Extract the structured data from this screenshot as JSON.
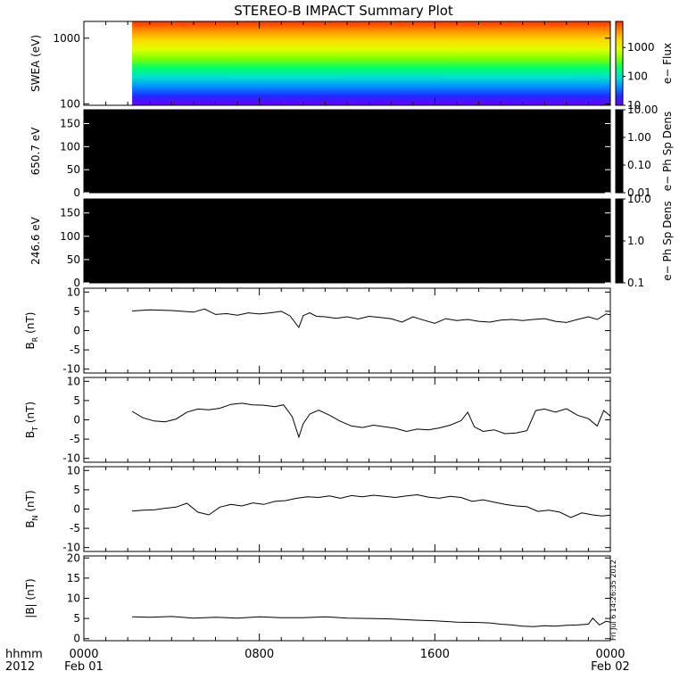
{
  "title": "STEREO-B IMPACT Summary Plot",
  "stamp": "Fri Jul  6 14:26:35 2012",
  "time_axis": {
    "label_top": "hhmm",
    "label_bottom": "2012",
    "ticks": [
      {
        "hour": 0,
        "label": "0000",
        "sublabel": "Feb 01"
      },
      {
        "hour": 8,
        "label": "0800",
        "sublabel": ""
      },
      {
        "hour": 16,
        "label": "1600",
        "sublabel": ""
      },
      {
        "hour": 24,
        "label": "0000",
        "sublabel": "Feb 02"
      }
    ]
  },
  "chart_data": [
    {
      "type": "heatmap",
      "name": "swea",
      "ylabel": "SWEA (eV)",
      "yscale": "log",
      "ylim": [
        95,
        1800
      ],
      "y_ticks": [
        {
          "v": 100,
          "label": "100"
        },
        {
          "v": 1000,
          "label": "1000"
        }
      ],
      "data_start_hour": 2.2,
      "colorbar": {
        "label": "e− Flux",
        "scale": "log",
        "range": [
          10,
          8000
        ],
        "ticks": [
          {
            "v": 10,
            "label": "10"
          },
          {
            "v": 100,
            "label": "100"
          },
          {
            "v": 1000,
            "label": "1000"
          }
        ]
      },
      "colors": [
        "#6a00ff",
        "#1f2bff",
        "#0090ff",
        "#00e0d0",
        "#00ff6a",
        "#7fff00",
        "#e0ff00",
        "#ffd800",
        "#ff9000",
        "#ff3000"
      ]
    },
    {
      "type": "heatmap",
      "name": "pad650",
      "ylabel": "650.7 eV",
      "ylim": [
        0,
        180
      ],
      "y_ticks": [
        {
          "v": 0,
          "label": "0"
        },
        {
          "v": 50,
          "label": "50"
        },
        {
          "v": 100,
          "label": "100"
        },
        {
          "v": 150,
          "label": "150"
        }
      ],
      "fill": "#000000",
      "colorbar": {
        "label": "e− Ph Sp Dens",
        "scale": "log",
        "range": [
          0.01,
          10
        ],
        "ticks": [
          {
            "v": 0.01,
            "label": "0.01"
          },
          {
            "v": 0.1,
            "label": "0.10"
          },
          {
            "v": 1,
            "label": "1.00"
          },
          {
            "v": 10,
            "label": "10.00"
          }
        ]
      }
    },
    {
      "type": "heatmap",
      "name": "pad246",
      "ylabel": "246.6 eV",
      "ylim": [
        0,
        180
      ],
      "y_ticks": [
        {
          "v": 0,
          "label": "0"
        },
        {
          "v": 50,
          "label": "50"
        },
        {
          "v": 100,
          "label": "100"
        },
        {
          "v": 150,
          "label": "150"
        }
      ],
      "fill": "#000000",
      "colorbar": {
        "label": "e− Ph Sp Dens",
        "scale": "log",
        "range": [
          0.1,
          10
        ],
        "ticks": [
          {
            "v": 0.1,
            "label": "0.1"
          },
          {
            "v": 1,
            "label": "1.0"
          },
          {
            "v": 10,
            "label": "10.0"
          }
        ]
      }
    },
    {
      "type": "line",
      "name": "br",
      "ylabel_main": "B",
      "ylabel_sub": "R",
      "ylabel_unit": " (nT)",
      "ylim": [
        -11,
        11
      ],
      "y_ticks": [
        -10,
        -5,
        0,
        5,
        10
      ],
      "x": [
        2.2,
        3,
        4,
        5,
        5.5,
        6,
        6.5,
        7,
        7.5,
        8,
        8.5,
        9,
        9.4,
        9.8,
        10,
        10.3,
        10.6,
        11,
        11.5,
        12,
        12.5,
        13,
        13.5,
        14,
        14.5,
        15,
        15.5,
        16,
        16.5,
        17,
        17.5,
        18,
        18.5,
        19,
        19.5,
        20,
        20.5,
        21,
        21.5,
        22,
        22.5,
        23,
        23.4,
        23.8,
        24
      ],
      "y": [
        5.1,
        5.4,
        5.2,
        4.8,
        5.6,
        4.2,
        4.4,
        4.0,
        4.6,
        4.3,
        4.6,
        5.0,
        3.8,
        0.8,
        3.9,
        4.6,
        3.7,
        3.6,
        3.2,
        3.6,
        3.0,
        3.7,
        3.4,
        3.1,
        2.2,
        3.6,
        2.7,
        1.9,
        3.1,
        2.6,
        2.9,
        2.4,
        2.2,
        2.7,
        2.9,
        2.6,
        2.9,
        3.1,
        2.4,
        2.1,
        2.9,
        3.6,
        2.9,
        4.3,
        4.1
      ]
    },
    {
      "type": "line",
      "name": "bt",
      "ylabel_main": "B",
      "ylabel_sub": "T",
      "ylabel_unit": " (nT)",
      "ylim": [
        -11,
        11
      ],
      "y_ticks": [
        -10,
        -5,
        0,
        5,
        10
      ],
      "x": [
        2.2,
        2.7,
        3.2,
        3.7,
        4.2,
        4.7,
        5.2,
        5.7,
        6.2,
        6.7,
        7.2,
        7.7,
        8.2,
        8.7,
        9.1,
        9.5,
        9.8,
        10,
        10.3,
        10.7,
        11.2,
        11.7,
        12.2,
        12.7,
        13.2,
        13.7,
        14.2,
        14.7,
        15.2,
        15.7,
        16.2,
        16.7,
        17.2,
        17.5,
        17.8,
        18.2,
        18.7,
        19.2,
        19.7,
        20.2,
        20.6,
        21,
        21.5,
        22,
        22.5,
        23,
        23.4,
        23.7,
        24
      ],
      "y": [
        2.2,
        0.5,
        -0.3,
        -0.5,
        0.2,
        2.0,
        2.8,
        2.6,
        3.0,
        4.0,
        4.3,
        3.9,
        3.8,
        3.4,
        3.9,
        0.8,
        -4.5,
        -1.0,
        1.5,
        2.5,
        1.2,
        -0.4,
        -1.6,
        -2.0,
        -1.4,
        -1.8,
        -2.2,
        -3.0,
        -2.4,
        -2.6,
        -2.1,
        -1.4,
        -0.2,
        2.0,
        -1.8,
        -3.0,
        -2.6,
        -3.6,
        -3.4,
        -2.8,
        2.4,
        2.8,
        2.0,
        2.9,
        1.2,
        0.3,
        -1.6,
        2.4,
        1.0
      ]
    },
    {
      "type": "line",
      "name": "bn",
      "ylabel_main": "B",
      "ylabel_sub": "N",
      "ylabel_unit": " (nT)",
      "ylim": [
        -11,
        11
      ],
      "y_ticks": [
        -10,
        -5,
        0,
        5,
        10
      ],
      "x": [
        2.2,
        2.7,
        3.2,
        3.7,
        4.2,
        4.7,
        5.2,
        5.7,
        6.2,
        6.7,
        7.2,
        7.7,
        8.2,
        8.7,
        9.2,
        9.7,
        10.2,
        10.7,
        11.2,
        11.7,
        12.2,
        12.7,
        13.2,
        13.7,
        14.2,
        14.7,
        15.2,
        15.7,
        16.2,
        16.7,
        17.2,
        17.7,
        18.2,
        18.7,
        19.2,
        19.7,
        20.2,
        20.7,
        21.2,
        21.7,
        22.2,
        22.7,
        23.2,
        23.6,
        24
      ],
      "y": [
        -0.5,
        -0.3,
        -0.2,
        0.2,
        0.5,
        1.5,
        -0.8,
        -1.5,
        0.5,
        1.2,
        0.8,
        1.6,
        1.2,
        2.0,
        2.2,
        2.8,
        3.2,
        3.0,
        3.4,
        2.8,
        3.5,
        3.2,
        3.6,
        3.3,
        3.0,
        3.4,
        3.7,
        3.1,
        2.8,
        3.3,
        3.0,
        2.0,
        2.4,
        1.8,
        1.2,
        0.8,
        0.6,
        -0.6,
        -0.3,
        -0.8,
        -2.2,
        -1.0,
        -1.5,
        -1.8,
        -1.6
      ]
    },
    {
      "type": "line",
      "name": "bmag",
      "ylabel_main": "|B|",
      "ylabel_sub": "",
      "ylabel_unit": " (nT)",
      "ylim": [
        -0.5,
        20.5
      ],
      "y_ticks": [
        0,
        5,
        10,
        15,
        20
      ],
      "x": [
        2.2,
        3,
        4,
        5,
        6,
        7,
        8,
        9,
        10,
        11,
        12,
        13,
        14,
        15,
        16,
        17,
        18,
        18.5,
        19,
        19.5,
        20,
        20.5,
        21,
        21.5,
        22,
        22.5,
        23,
        23.2,
        23.5,
        23.8,
        24
      ],
      "y": [
        5.4,
        5.3,
        5.5,
        5.1,
        5.3,
        5.1,
        5.4,
        5.2,
        5.2,
        5.4,
        5.1,
        5.0,
        4.9,
        4.6,
        4.4,
        4.1,
        4.0,
        3.9,
        3.6,
        3.4,
        3.1,
        3.0,
        3.2,
        3.1,
        3.3,
        3.4,
        3.6,
        5.1,
        3.4,
        4.3,
        4.1
      ]
    }
  ]
}
